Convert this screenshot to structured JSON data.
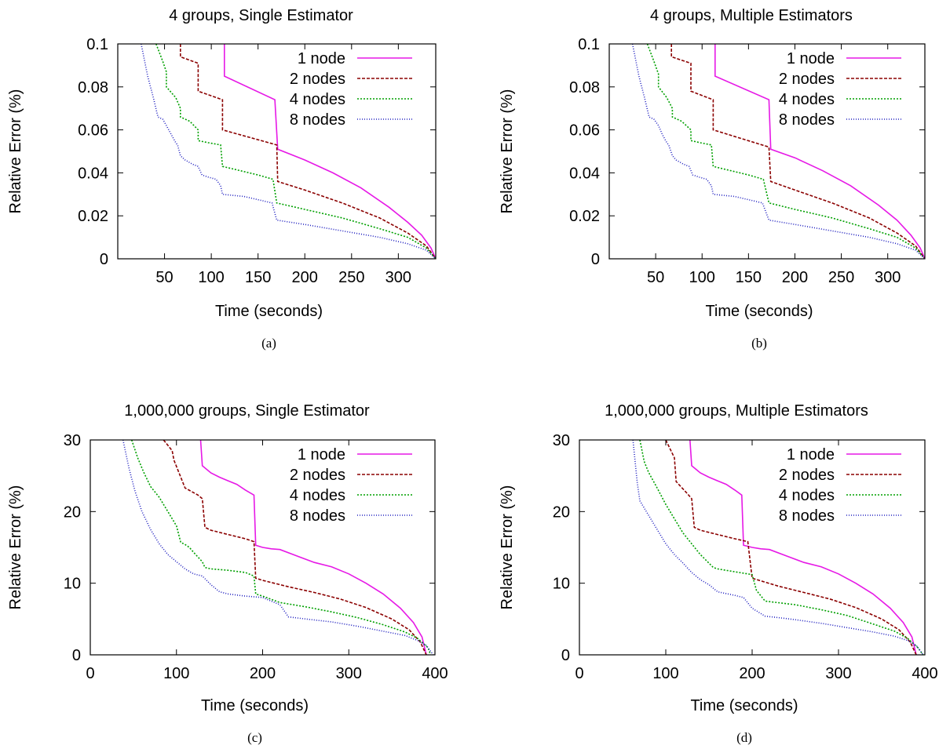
{
  "figure": {
    "panels": [
      "a",
      "b",
      "c",
      "d"
    ]
  },
  "chart_data": [
    {
      "type": "line",
      "panel": "a",
      "caption": "(a)",
      "title": "4 groups, Single Estimator",
      "xlabel": "Time (seconds)",
      "ylabel": "Relative Error (%)",
      "xlim": [
        0,
        340
      ],
      "ylim": [
        0,
        0.1
      ],
      "xticks": [
        50,
        100,
        150,
        200,
        250,
        300
      ],
      "xtick_labels": [
        "50",
        "100",
        "150",
        "200",
        "250",
        "300"
      ],
      "yticks": [
        0,
        0.02,
        0.04,
        0.06,
        0.08,
        0.1
      ],
      "ytick_labels": [
        "0",
        "0.02",
        "0.04",
        "0.06",
        "0.08",
        "0.1"
      ],
      "grid": false,
      "legend": "top-right",
      "series": [
        {
          "name": "1 node",
          "color": "#e619e6",
          "dash": "solid",
          "x": [
            114,
            114,
            168,
            171,
            200,
            230,
            260,
            290,
            310,
            325,
            335,
            340
          ],
          "y": [
            0.1,
            0.085,
            0.074,
            0.051,
            0.046,
            0.04,
            0.033,
            0.024,
            0.017,
            0.011,
            0.005,
            0.0
          ]
        },
        {
          "name": "2 nodes",
          "color": "#8b0000",
          "dash": "4,2",
          "x": [
            67,
            67,
            86,
            86,
            112,
            112,
            170,
            171,
            200,
            240,
            280,
            310,
            330,
            340
          ],
          "y": [
            0.1,
            0.094,
            0.091,
            0.078,
            0.074,
            0.06,
            0.053,
            0.036,
            0.032,
            0.026,
            0.019,
            0.012,
            0.006,
            0.0
          ]
        },
        {
          "name": "4 nodes",
          "color": "#00a000",
          "dash": "2,2",
          "x": [
            41,
            48,
            52,
            52,
            62,
            67,
            67,
            77,
            86,
            86,
            97,
            110,
            112,
            150,
            166,
            170,
            200,
            240,
            280,
            310,
            330,
            340
          ],
          "y": [
            0.1,
            0.092,
            0.087,
            0.08,
            0.075,
            0.07,
            0.066,
            0.064,
            0.06,
            0.055,
            0.054,
            0.053,
            0.043,
            0.039,
            0.037,
            0.026,
            0.023,
            0.019,
            0.014,
            0.01,
            0.005,
            0.0
          ]
        },
        {
          "name": "8 nodes",
          "color": "#2020c0",
          "dash": "1,2",
          "x": [
            25,
            32,
            38,
            43,
            48,
            52,
            57,
            62,
            64,
            67,
            72,
            80,
            86,
            90,
            97,
            105,
            110,
            112,
            135,
            155,
            165,
            170,
            200,
            240,
            280,
            310,
            330,
            340
          ],
          "y": [
            0.1,
            0.085,
            0.075,
            0.066,
            0.065,
            0.062,
            0.058,
            0.054,
            0.053,
            0.048,
            0.046,
            0.044,
            0.043,
            0.039,
            0.038,
            0.037,
            0.034,
            0.03,
            0.029,
            0.027,
            0.026,
            0.018,
            0.016,
            0.013,
            0.01,
            0.007,
            0.004,
            0.0
          ]
        }
      ]
    },
    {
      "type": "line",
      "panel": "b",
      "caption": "(b)",
      "title": "4 groups, Multiple Estimators",
      "xlabel": "Time (seconds)",
      "ylabel": "Relative Error (%)",
      "xlim": [
        0,
        340
      ],
      "ylim": [
        0,
        0.1
      ],
      "xticks": [
        50,
        100,
        150,
        200,
        250,
        300
      ],
      "xtick_labels": [
        "50",
        "100",
        "150",
        "200",
        "250",
        "300"
      ],
      "yticks": [
        0,
        0.02,
        0.04,
        0.06,
        0.08,
        0.1
      ],
      "ytick_labels": [
        "0",
        "0.02",
        "0.04",
        "0.06",
        "0.08",
        "0.1"
      ],
      "grid": false,
      "legend": "top-right",
      "series": [
        {
          "name": "1 node",
          "color": "#e619e6",
          "dash": "solid",
          "x": [
            114,
            114,
            172,
            174,
            200,
            230,
            260,
            290,
            310,
            325,
            335,
            340
          ],
          "y": [
            0.1,
            0.085,
            0.074,
            0.051,
            0.047,
            0.041,
            0.034,
            0.025,
            0.018,
            0.011,
            0.005,
            0.0
          ]
        },
        {
          "name": "2 nodes",
          "color": "#8b0000",
          "dash": "4,2",
          "x": [
            67,
            67,
            88,
            88,
            112,
            112,
            172,
            174,
            200,
            240,
            280,
            310,
            330,
            340
          ],
          "y": [
            0.1,
            0.094,
            0.091,
            0.078,
            0.074,
            0.06,
            0.052,
            0.036,
            0.032,
            0.026,
            0.019,
            0.012,
            0.006,
            0.0
          ]
        },
        {
          "name": "4 nodes",
          "color": "#00a000",
          "dash": "2,2",
          "x": [
            41,
            48,
            53,
            53,
            62,
            68,
            68,
            78,
            88,
            88,
            98,
            110,
            112,
            150,
            166,
            172,
            200,
            240,
            280,
            310,
            330,
            340
          ],
          "y": [
            0.1,
            0.092,
            0.086,
            0.08,
            0.075,
            0.07,
            0.066,
            0.064,
            0.06,
            0.055,
            0.054,
            0.053,
            0.043,
            0.039,
            0.037,
            0.026,
            0.023,
            0.019,
            0.014,
            0.01,
            0.005,
            0.0
          ]
        },
        {
          "name": "8 nodes",
          "color": "#2020c0",
          "dash": "1,2",
          "x": [
            25,
            32,
            38,
            43,
            48,
            53,
            57,
            62,
            64,
            68,
            72,
            80,
            86,
            90,
            97,
            105,
            110,
            112,
            135,
            155,
            165,
            172,
            200,
            240,
            280,
            310,
            330,
            340
          ],
          "y": [
            0.1,
            0.085,
            0.075,
            0.066,
            0.065,
            0.062,
            0.058,
            0.054,
            0.053,
            0.048,
            0.046,
            0.044,
            0.043,
            0.039,
            0.038,
            0.037,
            0.034,
            0.03,
            0.029,
            0.027,
            0.026,
            0.018,
            0.016,
            0.013,
            0.01,
            0.007,
            0.004,
            0.0
          ]
        }
      ]
    },
    {
      "type": "line",
      "panel": "c",
      "caption": "(c)",
      "title": "1,000,000 groups, Single Estimator",
      "xlabel": "Time (seconds)",
      "ylabel": "Relative Error (%)",
      "xlim": [
        0,
        400
      ],
      "ylim": [
        0,
        30
      ],
      "xticks": [
        0,
        100,
        200,
        300,
        400
      ],
      "xtick_labels": [
        "0",
        "100",
        "200",
        "300",
        "400"
      ],
      "yticks": [
        0,
        10,
        20,
        30
      ],
      "ytick_labels": [
        "0",
        "10",
        "20",
        "30"
      ],
      "grid": false,
      "legend": "top-right",
      "series": [
        {
          "name": "1 node",
          "color": "#e619e6",
          "dash": "solid",
          "x": [
            128,
            130,
            140,
            150,
            160,
            170,
            180,
            190,
            192,
            200,
            210,
            220,
            240,
            260,
            280,
            300,
            320,
            340,
            360,
            375,
            385,
            390
          ],
          "y": [
            30,
            26.4,
            25.4,
            24.8,
            24.3,
            23.8,
            23.0,
            22.3,
            15.3,
            15.0,
            14.8,
            14.7,
            13.8,
            12.9,
            12.3,
            11.3,
            10.0,
            8.5,
            6.5,
            4.5,
            2.5,
            0.0
          ]
        },
        {
          "name": "2 nodes",
          "color": "#8b0000",
          "dash": "4,2",
          "x": [
            85,
            95,
            97,
            110,
            125,
            130,
            133,
            140,
            160,
            180,
            190,
            192,
            200,
            230,
            260,
            290,
            320,
            350,
            370,
            383,
            390
          ],
          "y": [
            30,
            28.5,
            27.2,
            23.3,
            22.3,
            21.8,
            17.8,
            17.4,
            16.8,
            16.2,
            15.8,
            10.7,
            10.4,
            9.5,
            8.7,
            7.8,
            6.6,
            5.0,
            3.5,
            1.8,
            0.0
          ]
        },
        {
          "name": "4 nodes",
          "color": "#00a000",
          "dash": "2,2",
          "x": [
            48,
            55,
            62,
            70,
            80,
            90,
            100,
            105,
            110,
            115,
            120,
            130,
            133,
            140,
            160,
            180,
            190,
            192,
            200,
            220,
            250,
            280,
            310,
            340,
            365,
            380,
            392,
            395
          ],
          "y": [
            30,
            27.5,
            25.5,
            23.5,
            22.0,
            20.0,
            18.0,
            15.7,
            15.4,
            15.0,
            14.3,
            13.0,
            12.2,
            12.0,
            11.8,
            11.5,
            11.0,
            8.5,
            8.2,
            7.3,
            6.7,
            6.0,
            5.2,
            4.2,
            3.2,
            2.3,
            1.0,
            0.0
          ]
        },
        {
          "name": "8 nodes",
          "color": "#2020c0",
          "dash": "1,2",
          "x": [
            38,
            45,
            52,
            60,
            70,
            80,
            90,
            100,
            110,
            120,
            130,
            140,
            150,
            160,
            180,
            200,
            220,
            230,
            250,
            280,
            310,
            340,
            365,
            380,
            390,
            398
          ],
          "y": [
            30,
            26.0,
            22.8,
            20.0,
            17.5,
            15.5,
            14.0,
            13.0,
            12.0,
            11.3,
            11.0,
            9.8,
            8.8,
            8.5,
            8.2,
            8.0,
            7.0,
            5.3,
            5.0,
            4.6,
            4.0,
            3.3,
            2.7,
            2.0,
            1.3,
            0.0
          ]
        }
      ]
    },
    {
      "type": "line",
      "panel": "d",
      "caption": "(d)",
      "title": "1,000,000 groups, Multiple Estimators",
      "xlabel": "Time (seconds)",
      "ylabel": "Relative Error (%)",
      "xlim": [
        0,
        400
      ],
      "ylim": [
        0,
        30
      ],
      "xticks": [
        0,
        100,
        200,
        300,
        400
      ],
      "xtick_labels": [
        "0",
        "100",
        "200",
        "300",
        "400"
      ],
      "yticks": [
        0,
        10,
        20,
        30
      ],
      "ytick_labels": [
        "0",
        "10",
        "20",
        "30"
      ],
      "grid": false,
      "legend": "top-right",
      "series": [
        {
          "name": "1 node",
          "color": "#e619e6",
          "dash": "solid",
          "x": [
            128,
            130,
            140,
            150,
            160,
            170,
            180,
            188,
            190,
            200,
            210,
            220,
            240,
            260,
            280,
            300,
            320,
            340,
            360,
            375,
            385,
            390
          ],
          "y": [
            30,
            26.4,
            25.4,
            24.8,
            24.3,
            23.8,
            23.0,
            22.3,
            15.3,
            15.0,
            14.8,
            14.7,
            13.8,
            12.9,
            12.3,
            11.3,
            10.0,
            8.5,
            6.5,
            4.5,
            2.5,
            0.0
          ]
        },
        {
          "name": "2 nodes",
          "color": "#8b0000",
          "dash": "4,2",
          "x": [
            100,
            110,
            112,
            125,
            130,
            133,
            140,
            160,
            180,
            195,
            200,
            230,
            260,
            290,
            320,
            350,
            370,
            383,
            390
          ],
          "y": [
            30,
            27.5,
            24.2,
            22.5,
            21.8,
            17.8,
            17.4,
            16.8,
            16.2,
            15.8,
            10.7,
            9.6,
            8.7,
            7.8,
            6.6,
            5.0,
            3.5,
            1.8,
            0.0
          ]
        },
        {
          "name": "4 nodes",
          "color": "#00a000",
          "dash": "2,2",
          "x": [
            70,
            75,
            80,
            90,
            100,
            110,
            120,
            130,
            140,
            150,
            155,
            160,
            180,
            200,
            205,
            215,
            250,
            280,
            310,
            340,
            365,
            380,
            392,
            398
          ],
          "y": [
            30,
            27.0,
            25.5,
            23.3,
            21.0,
            19.0,
            17.0,
            15.5,
            14.0,
            12.8,
            12.2,
            12.0,
            11.6,
            11.2,
            9.0,
            7.5,
            7.0,
            6.3,
            5.5,
            4.3,
            3.3,
            2.3,
            1.0,
            0.0
          ]
        },
        {
          "name": "8 nodes",
          "color": "#2020c0",
          "dash": "1,2",
          "x": [
            62,
            67,
            70,
            80,
            90,
            100,
            110,
            120,
            130,
            140,
            150,
            160,
            180,
            190,
            200,
            215,
            230,
            250,
            280,
            310,
            340,
            365,
            380,
            390,
            398
          ],
          "y": [
            30,
            24.0,
            21.5,
            19.5,
            17.5,
            15.5,
            14.0,
            12.8,
            11.5,
            10.5,
            9.8,
            8.8,
            8.3,
            8.0,
            6.5,
            5.4,
            5.2,
            4.9,
            4.4,
            3.8,
            3.2,
            2.6,
            2.0,
            1.3,
            0.0
          ]
        }
      ]
    }
  ]
}
